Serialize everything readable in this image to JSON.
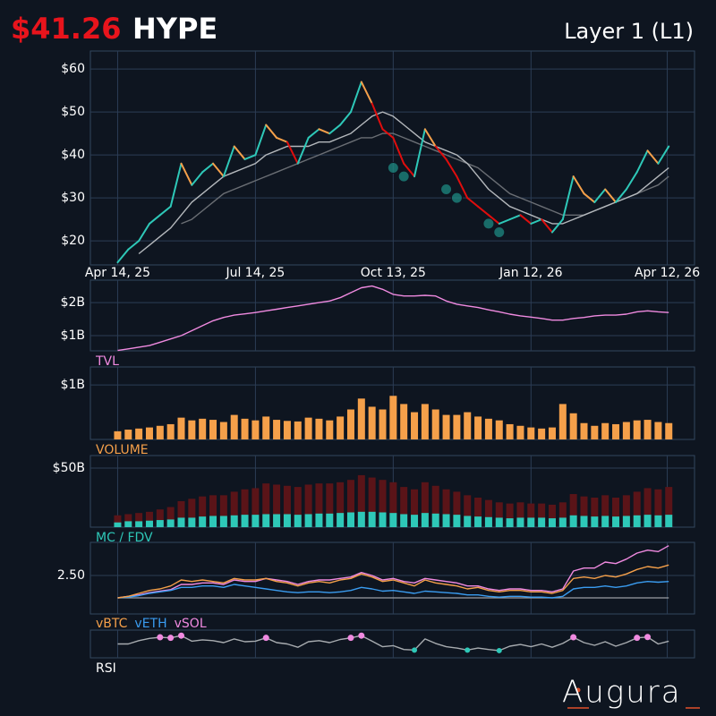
{
  "header": {
    "price": "$41.26",
    "symbol": "HYPE",
    "category": "Layer 1 (L1)"
  },
  "logo": "Augura",
  "chart_data": [
    {
      "type": "line",
      "grid": true,
      "x": [
        "2025-04-14",
        "2025-04-21",
        "2025-04-28",
        "2025-05-05",
        "2025-05-12",
        "2025-05-19",
        "2025-05-26",
        "2025-06-02",
        "2025-06-09",
        "2025-06-16",
        "2025-06-23",
        "2025-06-30",
        "2025-07-07",
        "2025-07-14",
        "2025-07-21",
        "2025-07-28",
        "2025-08-04",
        "2025-08-11",
        "2025-08-18",
        "2025-08-25",
        "2025-09-01",
        "2025-09-08",
        "2025-09-15",
        "2025-09-22",
        "2025-09-29",
        "2025-10-06",
        "2025-10-13",
        "2025-10-20",
        "2025-10-27",
        "2025-11-03",
        "2025-11-10",
        "2025-11-17",
        "2025-11-24",
        "2025-12-01",
        "2025-12-08",
        "2025-12-15",
        "2025-12-22",
        "2025-12-29",
        "2026-01-05",
        "2026-01-12",
        "2026-01-19",
        "2026-01-26",
        "2026-02-02",
        "2026-02-09",
        "2026-02-16",
        "2026-02-23",
        "2026-03-02",
        "2026-03-09",
        "2026-03-16",
        "2026-03-23",
        "2026-03-30",
        "2026-04-06",
        "2026-04-13"
      ],
      "xlim": [
        "2025-03-27",
        "2026-04-30"
      ],
      "xticks": [
        {
          "value": "2025-04-14",
          "label": "Apr 14, 25"
        },
        {
          "value": "2025-07-14",
          "label": "Jul 14, 25"
        },
        {
          "value": "2025-10-13",
          "label": "Oct 13, 25"
        },
        {
          "value": "2026-01-12",
          "label": "Jan 12, 26"
        },
        {
          "value": "2026-04-12",
          "label": "Apr 12, 26"
        }
      ],
      "ylim": [
        14.4,
        64.2
      ],
      "yticks": [
        {
          "value": 20,
          "label": "$20"
        },
        {
          "value": 30,
          "label": "$30"
        },
        {
          "value": 40,
          "label": "$40"
        },
        {
          "value": 50,
          "label": "$50"
        },
        {
          "value": 60,
          "label": "$60"
        }
      ],
      "series": [
        {
          "values": [
            15,
            18,
            20,
            24,
            26,
            28,
            38,
            33,
            36,
            38,
            35,
            42,
            39,
            40,
            47,
            44,
            43,
            38,
            44,
            46,
            45,
            47,
            50,
            57,
            52,
            46,
            44,
            38,
            35,
            46,
            42,
            39,
            35,
            30,
            28,
            26,
            24,
            25,
            26,
            24,
            25,
            22,
            25,
            35,
            31,
            29,
            32,
            29,
            32,
            36,
            41,
            38,
            42
          ],
          "color": "#2ec8b8",
          "down_color": "#f5a04a",
          "weak_color": "#e00d0d"
        },
        {
          "values": [
            null,
            null,
            17,
            19,
            21,
            23,
            26,
            29,
            31,
            33,
            35,
            36,
            37,
            38,
            40,
            41,
            42,
            42,
            42,
            43,
            43,
            44,
            45,
            47,
            49,
            50,
            49,
            47,
            45,
            43,
            42,
            41,
            40,
            38,
            35,
            32,
            30,
            28,
            27,
            26,
            25,
            24,
            24,
            25,
            26,
            27,
            28,
            29,
            30,
            31,
            33,
            35,
            37
          ],
          "color": "#b4b8bc"
        },
        {
          "values": [
            null,
            null,
            null,
            null,
            null,
            null,
            24,
            25,
            27,
            29,
            31,
            32,
            33,
            34,
            35,
            36,
            37,
            38,
            39,
            40,
            41,
            42,
            43,
            44,
            44,
            45,
            45,
            44,
            43,
            42,
            41,
            40,
            39,
            38,
            37,
            35,
            33,
            31,
            30,
            29,
            28,
            27,
            26,
            26,
            26,
            27,
            28,
            29,
            30,
            31,
            32,
            33,
            35
          ],
          "color": "#6a6e74"
        }
      ],
      "signals": {
        "x": [
          "2025-10-13",
          "2025-10-20",
          "2025-11-17",
          "2025-11-24",
          "2025-12-15",
          "2025-12-22"
        ],
        "values": [
          37,
          35,
          32,
          30,
          24,
          22
        ],
        "color": "#1d8a82"
      }
    },
    {
      "type": "line",
      "title": "TVL",
      "title_color": "#f08ae0",
      "grid": true,
      "ylim": [
        540000000.0,
        2680000000.0
      ],
      "yticks": [
        {
          "value": 1000000000.0,
          "label": "$1B"
        },
        {
          "value": 2000000000.0,
          "label": "$2B"
        }
      ],
      "series": [
        {
          "values": [
            550000000.0,
            600000000.0,
            650000000.0,
            700000000.0,
            800000000.0,
            900000000.0,
            1000000000.0,
            1150000000.0,
            1300000000.0,
            1450000000.0,
            1550000000.0,
            1620000000.0,
            1660000000.0,
            1700000000.0,
            1750000000.0,
            1800000000.0,
            1850000000.0,
            1900000000.0,
            1950000000.0,
            2000000000.0,
            2050000000.0,
            2150000000.0,
            2300000000.0,
            2450000000.0,
            2500000000.0,
            2400000000.0,
            2250000000.0,
            2200000000.0,
            2200000000.0,
            2220000000.0,
            2200000000.0,
            2050000000.0,
            1950000000.0,
            1900000000.0,
            1850000000.0,
            1780000000.0,
            1720000000.0,
            1650000000.0,
            1600000000.0,
            1560000000.0,
            1520000000.0,
            1470000000.0,
            1470000000.0,
            1520000000.0,
            1550000000.0,
            1600000000.0,
            1620000000.0,
            1620000000.0,
            1650000000.0,
            1720000000.0,
            1750000000.0,
            1720000000.0,
            1700000000.0
          ],
          "color": "#f08ae0"
        }
      ]
    },
    {
      "type": "bar",
      "title": "VOLUME",
      "title_color": "#f5a04a",
      "grid": true,
      "ylim": [
        0,
        1330000000.0
      ],
      "yticks": [
        {
          "value": 1000000000.0,
          "label": "$1B"
        }
      ],
      "series": [
        {
          "values": [
            150000000.0,
            180000000.0,
            200000000.0,
            220000000.0,
            250000000.0,
            280000000.0,
            400000000.0,
            350000000.0,
            380000000.0,
            360000000.0,
            320000000.0,
            450000000.0,
            380000000.0,
            350000000.0,
            420000000.0,
            360000000.0,
            340000000.0,
            330000000.0,
            400000000.0,
            380000000.0,
            350000000.0,
            420000000.0,
            550000000.0,
            750000000.0,
            600000000.0,
            550000000.0,
            800000000.0,
            650000000.0,
            500000000.0,
            650000000.0,
            550000000.0,
            450000000.0,
            450000000.0,
            500000000.0,
            420000000.0,
            380000000.0,
            350000000.0,
            280000000.0,
            250000000.0,
            220000000.0,
            200000000.0,
            220000000.0,
            650000000.0,
            480000000.0,
            300000000.0,
            250000000.0,
            300000000.0,
            280000000.0,
            320000000.0,
            350000000.0,
            360000000.0,
            320000000.0,
            300000000.0
          ],
          "color": "#f5a04a"
        }
      ]
    },
    {
      "type": "bar",
      "title": "MC / FDV",
      "title_color": "#2ec8b8",
      "grid": true,
      "ylim": [
        0,
        60600000000.0
      ],
      "yticks": [
        {
          "value": 50000000000.0,
          "label": "$50B"
        }
      ],
      "series": [
        {
          "values": [
            10000000000.0,
            11000000000.0,
            12000000000.0,
            13000000000.0,
            15000000000.0,
            17000000000.0,
            22000000000.0,
            24000000000.0,
            26000000000.0,
            27000000000.0,
            27000000000.0,
            30000000000.0,
            32000000000.0,
            33000000000.0,
            37000000000.0,
            36000000000.0,
            35000000000.0,
            34000000000.0,
            36000000000.0,
            37000000000.0,
            37000000000.0,
            38000000000.0,
            40000000000.0,
            44000000000.0,
            42000000000.0,
            40000000000.0,
            38000000000.0,
            34000000000.0,
            32000000000.0,
            38000000000.0,
            35000000000.0,
            32000000000.0,
            30000000000.0,
            27000000000.0,
            25000000000.0,
            23000000000.0,
            21000000000.0,
            20000000000.0,
            21000000000.0,
            20000000000.0,
            20000000000.0,
            19000000000.0,
            21000000000.0,
            28000000000.0,
            26000000000.0,
            25000000000.0,
            27000000000.0,
            25000000000.0,
            27000000000.0,
            30000000000.0,
            33000000000.0,
            32000000000.0,
            34000000000.0
          ],
          "color": "#5a1418"
        },
        {
          "values": [
            4000000000.0,
            5000000000.0,
            5000000000.0,
            5500000000.0,
            6000000000.0,
            6500000000.0,
            8000000000.0,
            8000000000.0,
            9000000000.0,
            9500000000.0,
            9500000000.0,
            10000000000.0,
            10500000000.0,
            10500000000.0,
            11000000000.0,
            11000000000.0,
            11000000000.0,
            10500000000.0,
            11000000000.0,
            11500000000.0,
            11500000000.0,
            12000000000.0,
            12500000000.0,
            13000000000.0,
            13000000000.0,
            12500000000.0,
            12000000000.0,
            11000000000.0,
            10500000000.0,
            12000000000.0,
            11500000000.0,
            11000000000.0,
            10500000000.0,
            9500000000.0,
            9000000000.0,
            8500000000.0,
            8000000000.0,
            7500000000.0,
            8000000000.0,
            8000000000.0,
            8000000000.0,
            7500000000.0,
            8000000000.0,
            10000000000.0,
            9500000000.0,
            9000000000.0,
            9500000000.0,
            9000000000.0,
            9500000000.0,
            10000000000.0,
            10500000000.0,
            10000000000.0,
            10500000000.0
          ],
          "color": "#2ec8b8"
        }
      ]
    },
    {
      "type": "line",
      "grid": true,
      "ylim": [
        -0.08,
        4.72
      ],
      "yticks": [
        {
          "value": 2.5,
          "label": "2.50"
        }
      ],
      "baseline": 1,
      "baseline_color": "#9a9ea2",
      "series": [
        {
          "name": "vBTC",
          "color": "#f5a04a",
          "values": [
            1,
            1.1,
            1.3,
            1.5,
            1.6,
            1.8,
            2.2,
            2.1,
            2.2,
            2.1,
            2,
            2.3,
            2.2,
            2.2,
            2.3,
            2.1,
            2,
            1.8,
            2,
            2.1,
            2,
            2.2,
            2.3,
            2.6,
            2.4,
            2.1,
            2.2,
            2,
            1.8,
            2.2,
            2,
            1.9,
            1.8,
            1.6,
            1.7,
            1.5,
            1.4,
            1.5,
            1.5,
            1.4,
            1.4,
            1.3,
            1.5,
            2.3,
            2.4,
            2.3,
            2.5,
            2.4,
            2.6,
            2.9,
            3.1,
            3,
            3.2
          ]
        },
        {
          "name": "vETH",
          "color": "#3a9cf0",
          "values": [
            1,
            1.05,
            1.15,
            1.3,
            1.4,
            1.5,
            1.7,
            1.7,
            1.8,
            1.8,
            1.7,
            1.9,
            1.8,
            1.7,
            1.6,
            1.5,
            1.4,
            1.35,
            1.4,
            1.4,
            1.35,
            1.4,
            1.5,
            1.7,
            1.6,
            1.45,
            1.5,
            1.4,
            1.3,
            1.45,
            1.4,
            1.35,
            1.3,
            1.2,
            1.2,
            1.1,
            1.05,
            1.1,
            1.1,
            1.05,
            1.05,
            1,
            1.1,
            1.6,
            1.7,
            1.7,
            1.8,
            1.7,
            1.8,
            2,
            2.1,
            2.05,
            2.1
          ]
        },
        {
          "name": "vSOL",
          "color": "#f08ae0",
          "values": [
            1,
            1.1,
            1.2,
            1.35,
            1.45,
            1.55,
            1.9,
            1.9,
            2,
            2,
            1.9,
            2.2,
            2.1,
            2.1,
            2.3,
            2.2,
            2.1,
            1.9,
            2.1,
            2.2,
            2.2,
            2.3,
            2.4,
            2.7,
            2.5,
            2.2,
            2.3,
            2.1,
            2,
            2.3,
            2.2,
            2.1,
            2,
            1.8,
            1.8,
            1.6,
            1.5,
            1.6,
            1.6,
            1.5,
            1.5,
            1.4,
            1.6,
            2.8,
            3,
            3,
            3.4,
            3.3,
            3.6,
            4,
            4.2,
            4.1,
            4.5
          ]
        }
      ]
    },
    {
      "type": "rsi",
      "title": "RSI",
      "title_color": "#ffffff",
      "grid": true,
      "ylim": [
        0,
        100
      ],
      "overbought": 70,
      "oversold": 30,
      "overbought_color": "#f08ae0",
      "oversold_color": "#2ec8b8",
      "series": [
        {
          "color": "#a8acb0",
          "values": [
            50,
            50,
            62,
            70,
            74,
            72,
            80,
            60,
            65,
            62,
            55,
            68,
            58,
            60,
            72,
            55,
            50,
            38,
            58,
            62,
            55,
            66,
            72,
            80,
            60,
            40,
            44,
            30,
            28,
            68,
            52,
            40,
            35,
            28,
            35,
            30,
            26,
            42,
            48,
            40,
            50,
            38,
            52,
            74,
            55,
            45,
            58,
            42,
            55,
            72,
            75,
            50,
            60
          ]
        }
      ]
    }
  ]
}
